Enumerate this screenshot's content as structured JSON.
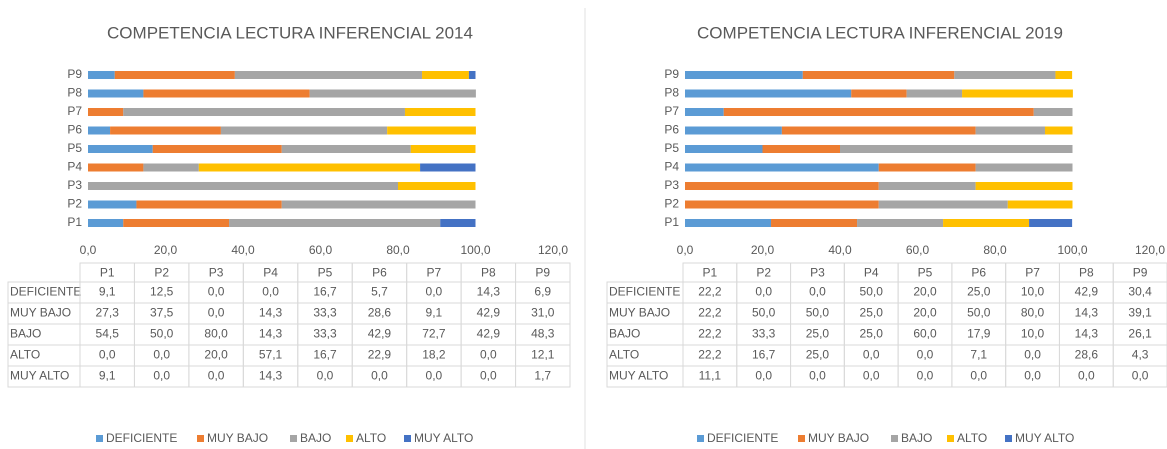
{
  "chart_data": [
    {
      "type": "stacked-bar-horizontal",
      "title": "COMPETENCIA LECTURA INFERENCIAL 2014",
      "categories": [
        "P1",
        "P2",
        "P3",
        "P4",
        "P5",
        "P6",
        "P7",
        "P8",
        "P9"
      ],
      "xlim": [
        0,
        120
      ],
      "xticks": [
        {
          "value": 0,
          "label": "0,0"
        },
        {
          "value": 20,
          "label": "20,0"
        },
        {
          "value": 40,
          "label": "40,0"
        },
        {
          "value": 60,
          "label": "60,0"
        },
        {
          "value": 80,
          "label": "80,0"
        },
        {
          "value": 100,
          "label": "100,0"
        },
        {
          "value": 120,
          "label": "120,0"
        }
      ],
      "series": [
        {
          "name": "DEFICIENTE",
          "color": "#5B9BD5",
          "values": [
            9.1,
            12.5,
            0,
            0,
            16.7,
            5.7,
            0,
            14.3,
            6.9
          ],
          "value_labels": [
            "9,1",
            "12,5",
            "0,0",
            "0,0",
            "16,7",
            "5,7",
            "0,0",
            "14,3",
            "6,9"
          ]
        },
        {
          "name": "MUY BAJO",
          "color": "#ED7D31",
          "values": [
            27.3,
            37.5,
            0,
            14.3,
            33.3,
            28.6,
            9.1,
            42.9,
            31.0
          ],
          "value_labels": [
            "27,3",
            "37,5",
            "0,0",
            "14,3",
            "33,3",
            "28,6",
            "9,1",
            "42,9",
            "31,0"
          ]
        },
        {
          "name": "BAJO",
          "color": "#A5A5A5",
          "values": [
            54.5,
            50,
            80,
            14.3,
            33.3,
            42.9,
            72.7,
            42.9,
            48.3
          ],
          "value_labels": [
            "54,5",
            "50,0",
            "80,0",
            "14,3",
            "33,3",
            "42,9",
            "72,7",
            "42,9",
            "48,3"
          ]
        },
        {
          "name": "ALTO",
          "color": "#FFC000",
          "values": [
            0,
            0,
            20,
            57.1,
            16.7,
            22.9,
            18.2,
            0,
            12.1
          ],
          "value_labels": [
            "0,0",
            "0,0",
            "20,0",
            "57,1",
            "16,7",
            "22,9",
            "18,2",
            "0,0",
            "12,1"
          ]
        },
        {
          "name": "MUY ALTO",
          "color": "#4472C4",
          "values": [
            9.1,
            0,
            0,
            14.3,
            0,
            0,
            0,
            0,
            1.7
          ],
          "value_labels": [
            "9,1",
            "0,0",
            "0,0",
            "14,3",
            "0,0",
            "0,0",
            "0,0",
            "0,0",
            "1,7"
          ]
        }
      ]
    },
    {
      "type": "stacked-bar-horizontal",
      "title": "COMPETENCIA LECTURA INFERENCIAL 2019",
      "categories": [
        "P1",
        "P2",
        "P3",
        "P4",
        "P5",
        "P6",
        "P7",
        "P8",
        "P9"
      ],
      "xlim": [
        0,
        120
      ],
      "xticks": [
        {
          "value": 0,
          "label": "0,0"
        },
        {
          "value": 20,
          "label": "20,0"
        },
        {
          "value": 40,
          "label": "40,0"
        },
        {
          "value": 60,
          "label": "60,0"
        },
        {
          "value": 80,
          "label": "80,0"
        },
        {
          "value": 100,
          "label": "100,0"
        },
        {
          "value": 120,
          "label": "120,0"
        }
      ],
      "series": [
        {
          "name": "DEFICIENTE",
          "color": "#5B9BD5",
          "values": [
            22.2,
            0,
            0,
            50,
            20,
            25,
            10,
            42.9,
            30.4
          ],
          "value_labels": [
            "22,2",
            "0,0",
            "0,0",
            "50,0",
            "20,0",
            "25,0",
            "10,0",
            "42,9",
            "30,4"
          ]
        },
        {
          "name": "MUY BAJO",
          "color": "#ED7D31",
          "values": [
            22.2,
            50,
            50,
            25,
            20,
            50,
            80,
            14.3,
            39.1
          ],
          "value_labels": [
            "22,2",
            "50,0",
            "50,0",
            "25,0",
            "20,0",
            "50,0",
            "80,0",
            "14,3",
            "39,1"
          ]
        },
        {
          "name": "BAJO",
          "color": "#A5A5A5",
          "values": [
            22.2,
            33.3,
            25,
            25,
            60,
            17.9,
            10,
            14.3,
            26.1
          ],
          "value_labels": [
            "22,2",
            "33,3",
            "25,0",
            "25,0",
            "60,0",
            "17,9",
            "10,0",
            "14,3",
            "26,1"
          ]
        },
        {
          "name": "ALTO",
          "color": "#FFC000",
          "values": [
            22.2,
            16.7,
            25,
            0,
            0,
            7.1,
            0,
            28.6,
            4.3
          ],
          "value_labels": [
            "22,2",
            "16,7",
            "25,0",
            "0,0",
            "0,0",
            "7,1",
            "0,0",
            "28,6",
            "4,3"
          ]
        },
        {
          "name": "MUY ALTO",
          "color": "#4472C4",
          "values": [
            11.1,
            0,
            0,
            0,
            0,
            0,
            0,
            0,
            0
          ],
          "value_labels": [
            "11,1",
            "0,0",
            "0,0",
            "0,0",
            "0,0",
            "0,0",
            "0,0",
            "0,0",
            "0,0"
          ]
        }
      ]
    }
  ]
}
